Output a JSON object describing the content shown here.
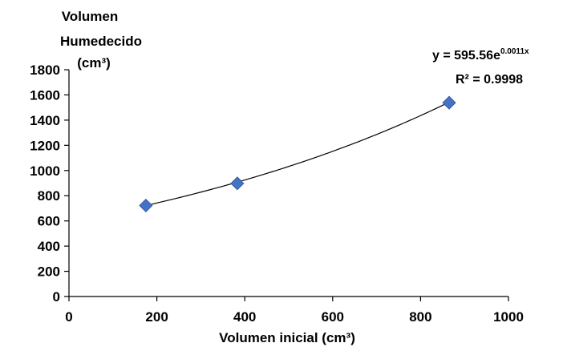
{
  "chart_data": {
    "type": "scatter",
    "title": "",
    "ylabel_lines": [
      "Volumen",
      "Humedecido",
      "(cm³)"
    ],
    "xlabel": "Volumen inicial (cm³)",
    "xlim": [
      0,
      1000
    ],
    "ylim": [
      0,
      1800
    ],
    "x_ticks": [
      0,
      200,
      400,
      600,
      800,
      1000
    ],
    "y_ticks": [
      0,
      200,
      400,
      600,
      800,
      1000,
      1200,
      1400,
      1600,
      1800
    ],
    "grid": false,
    "legend": "none",
    "marker_color": "#4472c4",
    "points": [
      {
        "x": 175,
        "y": 722
      },
      {
        "x": 383,
        "y": 898
      },
      {
        "x": 865,
        "y": 1538
      }
    ],
    "trendline": {
      "type": "exponential",
      "a": 595.56,
      "b": 0.0011,
      "x_range": [
        175,
        865
      ],
      "equation_base": "y = 595.56e",
      "equation_exponent": "0.0011x",
      "r2_text": "R² = 0.9998"
    }
  }
}
